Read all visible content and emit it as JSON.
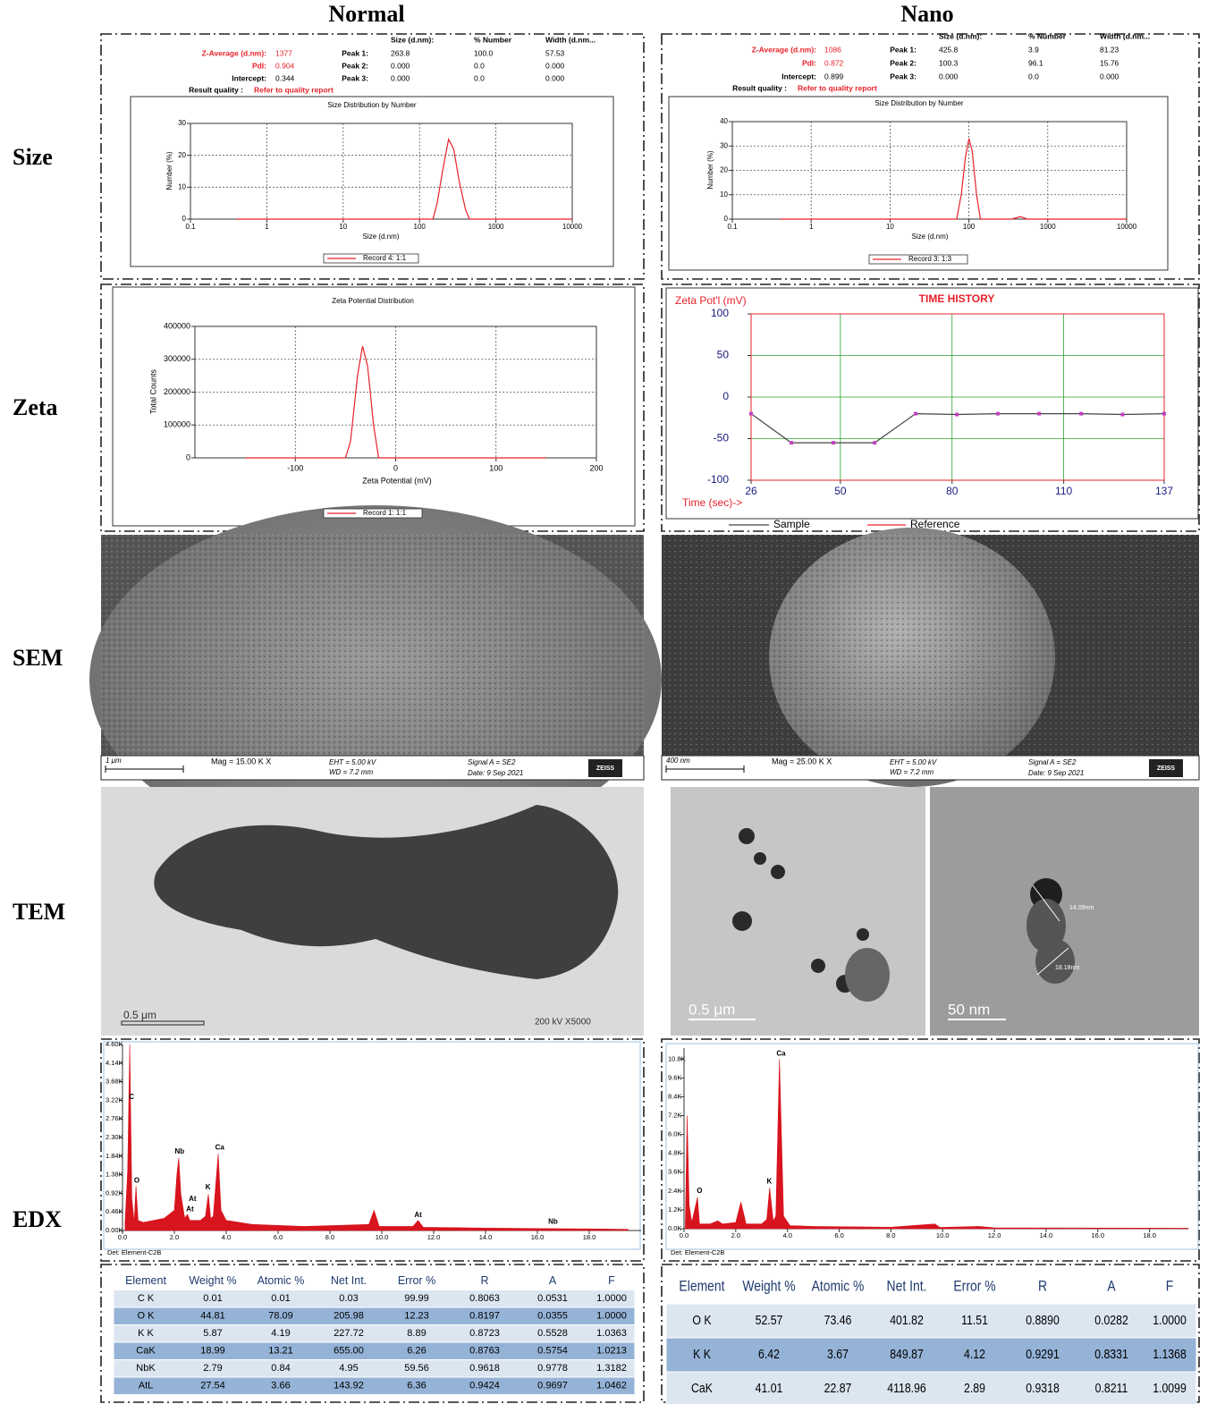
{
  "headers": [
    "Normal",
    "Nano"
  ],
  "row_labels": [
    "Size",
    "Zeta",
    "SEM",
    "TEM",
    "EDX"
  ],
  "size_results": [
    {
      "columns": [
        "Size (d.nm):",
        "% Number",
        "Width (d.nm..."
      ],
      "rows": [
        [
          "Z-Average (d.nm):",
          "1377",
          "Peak 1:",
          "263.8",
          "100.0",
          "57.53"
        ],
        [
          "PdI:",
          "0.904",
          "Peak 2:",
          "0.000",
          "0.0",
          "0.000"
        ],
        [
          "Intercept:",
          "0.344",
          "Peak 3:",
          "0.000",
          "0.0",
          "0.000"
        ]
      ],
      "quality": [
        "Result quality :",
        "Refer to quality report"
      ]
    },
    {
      "columns": [
        "Size (d.nm):",
        "% Number",
        "Width (d.nm..."
      ],
      "rows": [
        [
          "Z-Average (d.nm):",
          "1086",
          "Peak 1:",
          "425.8",
          "3.9",
          "81.23"
        ],
        [
          "PdI:",
          "0.872",
          "Peak 2:",
          "100.3",
          "96.1",
          "15.76"
        ],
        [
          "Intercept:",
          "0.899",
          "Peak 3:",
          "0.000",
          "0.0",
          "0.000"
        ]
      ],
      "quality": [
        "Result quality :",
        "Refer to quality report"
      ]
    }
  ],
  "chart_data": [
    {
      "type": "line",
      "title": "Size Distribution by Number",
      "x_label": "Size (d.nm)",
      "y_label": "Number (%)",
      "xscale": "log",
      "x": [
        0.4,
        150,
        170,
        200,
        240,
        280,
        330,
        400,
        450,
        10000
      ],
      "series": [
        {
          "name": "Record 4: 1:1",
          "color": "#e8222a",
          "values": [
            0,
            0,
            5,
            15,
            25,
            22,
            12,
            3,
            0,
            0
          ]
        }
      ],
      "xlim": [
        0.1,
        10000
      ],
      "xticks": [
        0.1,
        1,
        10,
        100,
        1000,
        10000
      ],
      "ylim": [
        0,
        30
      ],
      "yticks": [
        0,
        10,
        20,
        30
      ],
      "grid": true,
      "grid_color": "#555"
    },
    {
      "type": "line",
      "title": "Size Distribution by Number",
      "x_label": "Size (d.nm)",
      "y_label": "Number (%)",
      "xscale": "log",
      "x": [
        0.4,
        70,
        80,
        90,
        100,
        110,
        125,
        140,
        350,
        450,
        550,
        10000
      ],
      "series": [
        {
          "name": "Record 3: 1:3",
          "color": "#e8222a",
          "values": [
            0,
            0,
            10,
            25,
            33,
            28,
            10,
            0,
            0,
            1,
            0,
            0
          ]
        }
      ],
      "xlim": [
        0.1,
        10000
      ],
      "xticks": [
        0.1,
        1,
        10,
        100,
        1000,
        10000
      ],
      "ylim": [
        0,
        40
      ],
      "yticks": [
        0,
        10,
        20,
        30,
        40
      ],
      "grid": true,
      "grid_color": "#555"
    },
    {
      "type": "line",
      "title": "Zeta Potential Distribution",
      "x_label": "Zeta Potential (mV)",
      "y_label": "Total Counts",
      "x": [
        -150,
        -50,
        -45,
        -38,
        -33,
        -28,
        -22,
        -17,
        150
      ],
      "series": [
        {
          "name": "Record 1: 1:1",
          "color": "#e8222a",
          "values": [
            0,
            0,
            50000,
            250000,
            340000,
            280000,
            100000,
            0,
            0
          ]
        }
      ],
      "xlim": [
        -200,
        200
      ],
      "xticks": [
        -100,
        0,
        100,
        200
      ],
      "ylim": [
        0,
        400000
      ],
      "yticks": [
        0,
        100000,
        200000,
        300000,
        400000
      ],
      "grid": true,
      "grid_color": "#555"
    },
    {
      "type": "line",
      "title": "TIME HISTORY",
      "x_label": "Time (sec)->",
      "y_label": "Zeta Pot'l (mV)",
      "markers": true,
      "x": [
        26,
        36.8,
        48.1,
        59.2,
        70.2,
        81.3,
        92.3,
        103.4,
        114.7,
        125.8,
        137
      ],
      "series": [
        {
          "name": "Sample",
          "color": "#444444",
          "marker_color": "#c040c0",
          "values": [
            -20,
            -55,
            -55,
            -55,
            -20,
            -21,
            -20,
            -20,
            -20,
            -21,
            -20
          ]
        }
      ],
      "reference_name": "Reference",
      "reference_color": "#e8222a",
      "xlim": [
        26,
        137
      ],
      "xticks": [
        26,
        50,
        80,
        110,
        137
      ],
      "ylim": [
        -100,
        100
      ],
      "yticks": [
        -100,
        -50,
        0,
        50,
        100
      ],
      "grid": true,
      "grid_color": "#2aa02a"
    },
    {
      "type": "area",
      "note": "Det: Element-C2B",
      "x": [
        0.1,
        0.2,
        0.28,
        0.36,
        0.45,
        0.52,
        0.6,
        0.8,
        1.2,
        1.6,
        2.0,
        2.1,
        2.17,
        2.25,
        2.4,
        2.5,
        2.6,
        3.0,
        3.2,
        3.31,
        3.4,
        3.5,
        3.69,
        3.8,
        4.0,
        5.0,
        7.0,
        9.5,
        9.7,
        9.9,
        11.2,
        11.4,
        11.6,
        14,
        18,
        19.5
      ],
      "series": [
        {
          "color": "#d8141e",
          "values": [
            200,
            1500,
            4600,
            800,
            200,
            1100,
            250,
            200,
            250,
            300,
            500,
            1400,
            1800,
            900,
            300,
            400,
            250,
            250,
            350,
            900,
            300,
            350,
            1900,
            500,
            250,
            150,
            100,
            150,
            500,
            100,
            100,
            250,
            80,
            60,
            40,
            30
          ]
        }
      ],
      "xlim": [
        0,
        20
      ],
      "xticks": [
        {
          "value": 0,
          "label": "0.0"
        },
        {
          "value": 2,
          "label": "2.0"
        },
        {
          "value": 4,
          "label": "4.0"
        },
        {
          "value": 6,
          "label": "6.0"
        },
        {
          "value": 8,
          "label": "8.0"
        },
        {
          "value": 10,
          "label": "10.0"
        },
        {
          "value": 12,
          "label": "12.0"
        },
        {
          "value": 14,
          "label": "14.0"
        },
        {
          "value": 16,
          "label": "16.0"
        },
        {
          "value": 18,
          "label": "18.0"
        }
      ],
      "ylim": [
        0,
        4600
      ],
      "yticks": [
        {
          "value": 0,
          "label": "0.00K"
        },
        {
          "value": 460,
          "label": "0.46K"
        },
        {
          "value": 920,
          "label": "0.92K"
        },
        {
          "value": 1380,
          "label": "1.38K"
        },
        {
          "value": 1840,
          "label": "1.84K"
        },
        {
          "value": 2300,
          "label": "2.30K"
        },
        {
          "value": 2760,
          "label": "2.76K"
        },
        {
          "value": 3220,
          "label": "3.22K"
        },
        {
          "value": 3680,
          "label": "3.68K"
        },
        {
          "value": 4140,
          "label": "4.14K"
        },
        {
          "value": 4600,
          "label": "4.60K"
        }
      ],
      "grid": false,
      "annotations": [
        {
          "text": "C",
          "x": 0.35,
          "y": 3300
        },
        {
          "text": "O",
          "x": 0.55,
          "y": 1230
        },
        {
          "text": "Nb",
          "x": 2.2,
          "y": 1950
        },
        {
          "text": "At",
          "x": 2.7,
          "y": 780
        },
        {
          "text": "At",
          "x": 2.6,
          "y": 520
        },
        {
          "text": "K",
          "x": 3.3,
          "y": 1060
        },
        {
          "text": "Ca",
          "x": 3.75,
          "y": 2050
        },
        {
          "text": "At",
          "x": 11.4,
          "y": 380
        },
        {
          "text": "Nb",
          "x": 16.6,
          "y": 210
        }
      ]
    },
    {
      "type": "area",
      "note": "Det: Element-C2B",
      "x": [
        0.05,
        0.12,
        0.2,
        0.3,
        0.52,
        0.6,
        1.0,
        1.3,
        1.5,
        2.0,
        2.2,
        2.4,
        3.0,
        3.2,
        3.31,
        3.45,
        3.55,
        3.69,
        3.85,
        4.1,
        5,
        8,
        9.7,
        9.9,
        11.4,
        12,
        19.5
      ],
      "series": [
        {
          "color": "#d8141e",
          "values": [
            300,
            7200,
            1500,
            400,
            2000,
            300,
            300,
            500,
            300,
            400,
            1700,
            300,
            300,
            600,
            2600,
            500,
            800,
            10800,
            800,
            200,
            150,
            100,
            300,
            80,
            150,
            60,
            30
          ]
        }
      ],
      "xlim": [
        0,
        19.5
      ],
      "xticks": [
        {
          "value": 0,
          "label": "0.0"
        },
        {
          "value": 2,
          "label": "2.0"
        },
        {
          "value": 4,
          "label": "4.0"
        },
        {
          "value": 6,
          "label": "6.0"
        },
        {
          "value": 8,
          "label": "8.0"
        },
        {
          "value": 10,
          "label": "10.0"
        },
        {
          "value": 12,
          "label": "12.0"
        },
        {
          "value": 14,
          "label": "14.0"
        },
        {
          "value": 16,
          "label": "16.0"
        },
        {
          "value": 18,
          "label": "18.0"
        }
      ],
      "ylim": [
        0,
        11500
      ],
      "yticks": [
        {
          "value": 0,
          "label": "0.0K"
        },
        {
          "value": 1200,
          "label": "1.2K"
        },
        {
          "value": 2400,
          "label": "2.4K"
        },
        {
          "value": 3600,
          "label": "3.6K"
        },
        {
          "value": 4800,
          "label": "4.8K"
        },
        {
          "value": 6000,
          "label": "6.0K"
        },
        {
          "value": 7200,
          "label": "7.2K"
        },
        {
          "value": 8400,
          "label": "8.4K"
        },
        {
          "value": 9600,
          "label": "9.6K"
        },
        {
          "value": 10800,
          "label": "10.8K"
        }
      ],
      "grid": false,
      "annotations": [
        {
          "text": "Ca",
          "x": 3.75,
          "y": 11150
        },
        {
          "text": "K",
          "x": 3.3,
          "y": 3000
        },
        {
          "text": "O",
          "x": 0.6,
          "y": 2400
        }
      ]
    }
  ],
  "sem": [
    {
      "scale": "1 μm",
      "mag": "Mag =   15.00 K X",
      "eht": "EHT =  5.00 kV",
      "wd": "WD =  7.2 mm",
      "signal": "Signal A = SE2",
      "date": "Date: 9 Sep 2021",
      "logo": "ZEISS"
    },
    {
      "scale": "400 nm",
      "mag": "Mag =   25.00 K X",
      "eht": "EHT =  5.00 kV",
      "wd": "WD =  7.2 mm",
      "signal": "Signal A = SE2",
      "date": "Date: 9 Sep 2021",
      "logo": "ZEISS"
    }
  ],
  "tem": {
    "normal": {
      "scale": "0.5 μm",
      "info": "200 kV  X5000"
    },
    "nano": [
      {
        "scale": "0.5 μm"
      },
      {
        "scale": "50 nm",
        "measures": [
          "14.09nm",
          "18.18nm"
        ]
      }
    ]
  },
  "edx_tables": [
    {
      "columns": [
        "Element",
        "Weight %",
        "Atomic %",
        "Net Int.",
        "Error %",
        "R",
        "A",
        "F"
      ],
      "rows": [
        [
          "C K",
          "0.01",
          "0.01",
          "0.03",
          "99.99",
          "0.8063",
          "0.0531",
          "1.0000"
        ],
        [
          "O K",
          "44.81",
          "78.09",
          "205.98",
          "12.23",
          "0.8197",
          "0.0355",
          "1.0000"
        ],
        [
          "K K",
          "5.87",
          "4.19",
          "227.72",
          "8.89",
          "0.8723",
          "0.5528",
          "1.0363"
        ],
        [
          "CaK",
          "18.99",
          "13.21",
          "655.00",
          "6.26",
          "0.8763",
          "0.5754",
          "1.0213"
        ],
        [
          "NbK",
          "2.79",
          "0.84",
          "4.95",
          "59.56",
          "0.9618",
          "0.9778",
          "1.3182"
        ],
        [
          "AtL",
          "27.54",
          "3.66",
          "143.92",
          "6.36",
          "0.9424",
          "0.9697",
          "1.0462"
        ]
      ]
    },
    {
      "columns": [
        "Element",
        "Weight %",
        "Atomic %",
        "Net Int.",
        "Error %",
        "R",
        "A",
        "F"
      ],
      "rows": [
        [
          "O K",
          "52.57",
          "73.46",
          "401.82",
          "11.51",
          "0.8890",
          "0.0282",
          "1.0000"
        ],
        [
          "K K",
          "6.42",
          "3.67",
          "849.87",
          "4.12",
          "0.9291",
          "0.8331",
          "1.1368"
        ],
        [
          "CaK",
          "41.01",
          "22.87",
          "4118.96",
          "2.89",
          "0.9318",
          "0.8211",
          "1.0099"
        ]
      ]
    }
  ]
}
